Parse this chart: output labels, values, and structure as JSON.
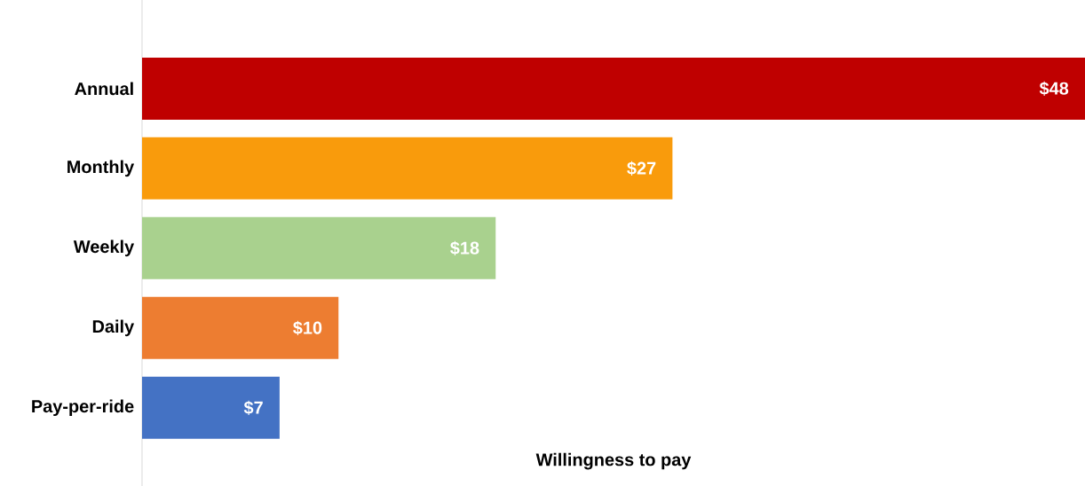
{
  "chart_data": {
    "type": "bar",
    "orientation": "horizontal",
    "xlabel": "Willingness to pay",
    "categories": [
      "Annual",
      "Monthly",
      "Weekly",
      "Daily",
      "Pay-per-ride"
    ],
    "values": [
      48,
      27,
      18,
      10,
      7
    ],
    "colors": [
      "#bf0000",
      "#f99b0c",
      "#a9d18e",
      "#ed7d31",
      "#4472c4"
    ],
    "value_labels": [
      "$48",
      "$27",
      "$18",
      "$10",
      "$7"
    ]
  }
}
